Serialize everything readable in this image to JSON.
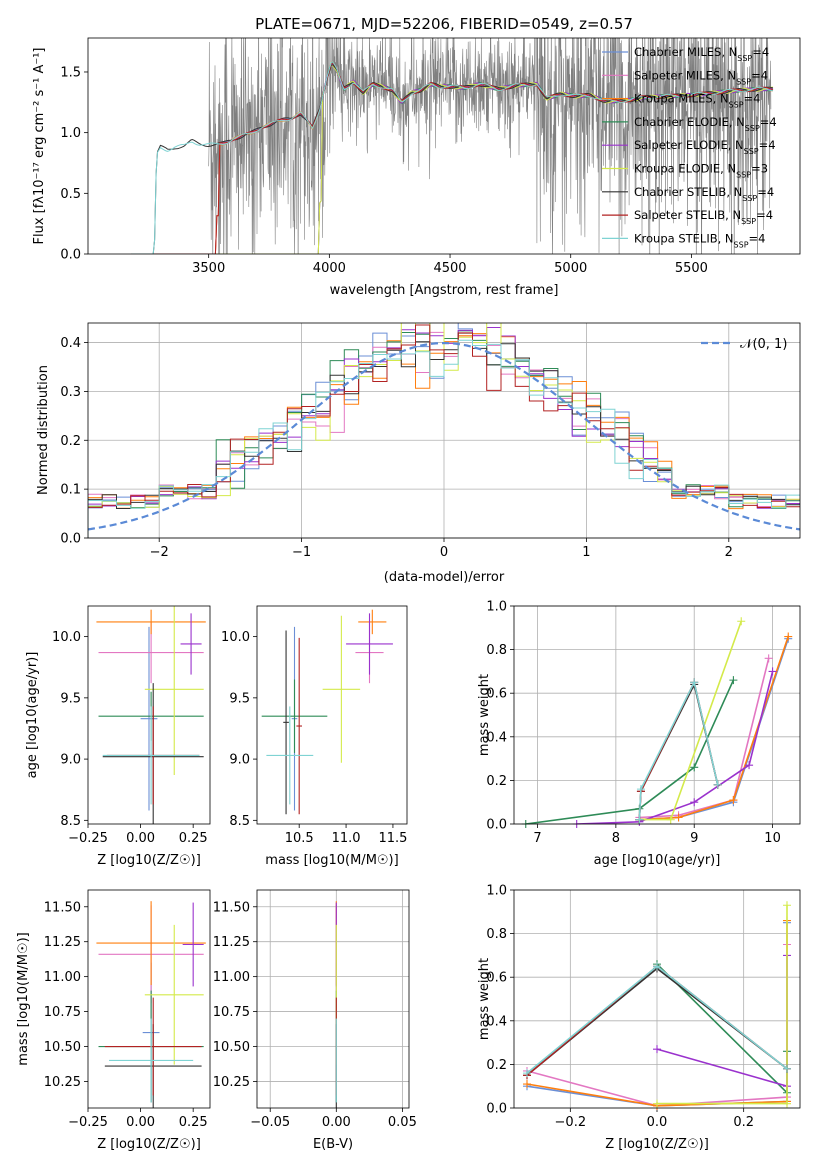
{
  "title": "PLATE=0671, MJD=52206, FIBERID=0549, z=0.57",
  "colors": {
    "Chabrier MILES": "#6b8fd6",
    "Salpeter MILES": "#e377c2",
    "Kroupa MILES": "#ff7f0e",
    "Chabrier ELODIE": "#2e8b57",
    "Salpeter ELODIE": "#9a32cd",
    "Kroupa ELODIE": "#d4ea4a",
    "Chabrier STELIB": "#333333",
    "Salpeter STELIB": "#b22222",
    "Kroupa STELIB": "#7fd3d3",
    "data": "#808080"
  },
  "chart_data": [
    {
      "type": "line",
      "title": "PLATE=0671, MJD=52206, FIBERID=0549, z=0.57",
      "xlabel": "wavelength [Angstrom, rest frame]",
      "ylabel": "Flux [f_λ 10⁻¹⁷ erg cm⁻² s⁻¹ A⁻¹]",
      "xlim": [
        3000,
        5950
      ],
      "ylim": [
        0,
        1.78
      ],
      "xticks": [
        "3500",
        "4000",
        "4500",
        "5000",
        "5500"
      ],
      "yticks": [
        "0.0",
        "0.5",
        "1.0",
        "1.5"
      ],
      "legend": [
        "Chabrier MILES, N_SSP=4",
        "Salpeter MILES, N_SSP=4",
        "Kroupa MILES, N_SSP=4",
        "Chabrier ELODIE, N_SSP=4",
        "Salpeter ELODIE, N_SSP=4",
        "Kroupa ELODIE, N_SSP=3",
        "Chabrier STELIB, N_SSP=4",
        "Salpeter STELIB, N_SSP=4",
        "Kroupa STELIB, N_SSP=4"
      ],
      "legend_loc": "upper right",
      "model_x": [
        3180,
        3270,
        3285,
        3300,
        3330,
        3360,
        3400,
        3430,
        3460,
        3500,
        3530,
        3560,
        3600,
        3640,
        3680,
        3720,
        3760,
        3800,
        3840,
        3880,
        3930,
        3960,
        3990,
        4010,
        4030,
        4060,
        4100,
        4140,
        4180,
        4220,
        4260,
        4300,
        4340,
        4380,
        4420,
        4460,
        4500,
        4560,
        4620,
        4700,
        4780,
        4860,
        4900,
        4960,
        5020,
        5080,
        5140,
        5180,
        5250,
        5300,
        5400,
        5500,
        5600,
        5700,
        5800
      ],
      "model_y": [
        0.0,
        0.0,
        0.82,
        0.88,
        0.86,
        0.88,
        0.89,
        0.93,
        0.91,
        0.9,
        0.9,
        0.91,
        0.95,
        0.97,
        1.0,
        1.05,
        1.07,
        1.1,
        1.12,
        1.16,
        1.04,
        1.2,
        1.45,
        1.58,
        1.52,
        1.36,
        1.42,
        1.33,
        1.4,
        1.38,
        1.35,
        1.25,
        1.33,
        1.35,
        1.4,
        1.38,
        1.38,
        1.37,
        1.4,
        1.36,
        1.39,
        1.4,
        1.28,
        1.32,
        1.3,
        1.31,
        1.26,
        1.26,
        1.27,
        1.29,
        1.3,
        1.31,
        1.33,
        1.35,
        1.36
      ],
      "model_start": {
        "Chabrier MILES": 3530,
        "Salpeter MILES": 3530,
        "Kroupa MILES": 3530,
        "Chabrier ELODIE": 3960,
        "Salpeter ELODIE": 3960,
        "Kroupa ELODIE": 3960,
        "Chabrier STELIB": 3270,
        "Salpeter STELIB": 3530,
        "Kroupa STELIB": 3270
      },
      "data_range": [
        3500,
        5830
      ]
    },
    {
      "type": "histogram",
      "xlabel": "(data-model)/error",
      "ylabel": "Normed distribution",
      "xlim": [
        -2.5,
        2.5
      ],
      "ylim": [
        0,
        0.44
      ],
      "xticks": [
        "−2",
        "−1",
        "0",
        "1",
        "2"
      ],
      "yticks": [
        "0.0",
        "0.1",
        "0.2",
        "0.3",
        "0.4"
      ],
      "legend": [
        "𝒩(0, 1)"
      ],
      "legend_loc": "upper right",
      "bin_width": 0.1
    },
    {
      "type": "scatter",
      "xlabel": "Z [log10(Z/Z☉)]",
      "ylabel": "age  [log10(age/yr)]",
      "xlim": [
        -0.25,
        0.33
      ],
      "ylim": [
        8.47,
        10.25
      ],
      "xticks": [
        "−0.25",
        "0.00",
        "0.25"
      ],
      "yticks": [
        "8.5",
        "9.0",
        "9.5",
        "10.0"
      ],
      "points": [
        {
          "series": "Chabrier MILES",
          "x": 0.04,
          "y": 9.33,
          "xe": 0.04,
          "ye": 0.75
        },
        {
          "series": "Salpeter MILES",
          "x": 0.05,
          "y": 9.87,
          "xe": 0.25,
          "ye": 0.25
        },
        {
          "series": "Kroupa MILES",
          "x": 0.05,
          "y": 10.12,
          "xe": 0.26,
          "ye": 0.1
        },
        {
          "series": "Chabrier ELODIE",
          "x": 0.05,
          "y": 9.35,
          "xe": 0.25,
          "ye": 0.2
        },
        {
          "series": "Salpeter ELODIE",
          "x": 0.24,
          "y": 9.94,
          "xe": 0.05,
          "ye": 0.25
        },
        {
          "series": "Kroupa ELODIE",
          "x": 0.16,
          "y": 9.57,
          "xe": 0.14,
          "ye": 0.7
        },
        {
          "series": "Chabrier STELIB",
          "x": 0.06,
          "y": 9.02,
          "xe": 0.24,
          "ye": 0.6
        },
        {
          "series": "Salpeter STELIB",
          "x": 0.06,
          "y": 9.03,
          "xe": 0.22,
          "ye": 0.4
        },
        {
          "series": "Kroupa STELIB",
          "x": 0.05,
          "y": 9.03,
          "xe": 0.23,
          "ye": 0.4
        }
      ]
    },
    {
      "type": "scatter",
      "xlabel": "mass [log10(M/M☉)]",
      "xlim": [
        10.05,
        11.65
      ],
      "ylim": [
        8.47,
        10.25
      ],
      "xticks": [
        "10.5",
        "11.0",
        "11.5"
      ],
      "yticks": [
        "8.5",
        "9.0",
        "9.5",
        "10.0"
      ],
      "points": [
        {
          "series": "Chabrier MILES",
          "x": 10.45,
          "y": 9.33,
          "xe": 0.03,
          "ye": 0.75
        },
        {
          "series": "Salpeter MILES",
          "x": 11.25,
          "y": 9.87,
          "xe": 0.15,
          "ye": 0.25
        },
        {
          "series": "Kroupa MILES",
          "x": 11.28,
          "y": 10.12,
          "xe": 0.15,
          "ye": 0.1
        },
        {
          "series": "Chabrier ELODIE",
          "x": 10.45,
          "y": 9.35,
          "xe": 0.35,
          "ye": 0.3
        },
        {
          "series": "Salpeter ELODIE",
          "x": 11.25,
          "y": 9.94,
          "xe": 0.25,
          "ye": 0.25
        },
        {
          "series": "Kroupa ELODIE",
          "x": 10.95,
          "y": 9.57,
          "xe": 0.2,
          "ye": 0.6
        },
        {
          "series": "Chabrier STELIB",
          "x": 10.36,
          "y": 9.3,
          "xe": 0.03,
          "ye": 0.75
        },
        {
          "series": "Salpeter STELIB",
          "x": 10.5,
          "y": 9.27,
          "xe": 0.03,
          "ye": 0.72
        },
        {
          "series": "Kroupa STELIB",
          "x": 10.4,
          "y": 9.03,
          "xe": 0.25,
          "ye": 0.4
        }
      ]
    },
    {
      "type": "line",
      "xlabel": "age  [log10(age/yr)]",
      "ylabel": "mass weight",
      "xlim": [
        6.7,
        10.35
      ],
      "ylim": [
        0,
        1.0
      ],
      "xticks": [
        "7",
        "8",
        "9",
        "10"
      ],
      "yticks": [
        "0.0",
        "0.2",
        "0.4",
        "0.6",
        "0.8",
        "1.0"
      ],
      "series": [
        {
          "name": "Chabrier MILES",
          "x": [
            8.3,
            8.8,
            9.5,
            10.2
          ],
          "y": [
            0.02,
            0.03,
            0.1,
            0.85
          ]
        },
        {
          "name": "Salpeter MILES",
          "x": [
            8.3,
            8.8,
            9.5,
            9.95
          ],
          "y": [
            0.03,
            0.04,
            0.11,
            0.76
          ]
        },
        {
          "name": "Kroupa MILES",
          "x": [
            8.3,
            8.8,
            9.5,
            10.2
          ],
          "y": [
            0.02,
            0.03,
            0.11,
            0.86
          ]
        },
        {
          "name": "Chabrier ELODIE",
          "x": [
            6.85,
            8.3,
            9.0,
            9.5
          ],
          "y": [
            0.0,
            0.07,
            0.26,
            0.66
          ]
        },
        {
          "name": "Salpeter ELODIE",
          "x": [
            7.5,
            8.3,
            9.0,
            9.7,
            10.0
          ],
          "y": [
            0.0,
            0.01,
            0.1,
            0.27,
            0.7
          ]
        },
        {
          "name": "Kroupa ELODIE",
          "x": [
            8.3,
            8.7,
            9.6
          ],
          "y": [
            0.02,
            0.02,
            0.93
          ]
        },
        {
          "name": "Chabrier STELIB",
          "x": [
            8.3,
            8.32,
            9.0,
            9.3
          ],
          "y": [
            0.02,
            0.15,
            0.64,
            0.18
          ]
        },
        {
          "name": "Salpeter STELIB",
          "x": [
            8.3,
            8.32,
            9.0,
            9.3
          ],
          "y": [
            0.02,
            0.15,
            0.65,
            0.18
          ]
        },
        {
          "name": "Kroupa STELIB",
          "x": [
            8.3,
            8.32,
            9.0,
            9.3
          ],
          "y": [
            0.02,
            0.16,
            0.65,
            0.18
          ]
        }
      ]
    },
    {
      "type": "scatter",
      "xlabel": "Z [log10(Z/Z☉)]",
      "ylabel": "mass [log10(M/M☉)]",
      "xlim": [
        -0.25,
        0.33
      ],
      "ylim": [
        10.06,
        11.62
      ],
      "xticks": [
        "−0.25",
        "0.00",
        "0.25"
      ],
      "yticks": [
        "10.25",
        "10.50",
        "10.75",
        "11.00",
        "11.25",
        "11.50"
      ],
      "points": [
        {
          "series": "Chabrier MILES",
          "x": 0.05,
          "y": 10.6,
          "xe": 0.04,
          "ye": 0.5
        },
        {
          "series": "Salpeter MILES",
          "x": 0.05,
          "y": 11.16,
          "xe": 0.25,
          "ye": 0.35
        },
        {
          "series": "Kroupa MILES",
          "x": 0.05,
          "y": 11.24,
          "xe": 0.26,
          "ye": 0.3
        },
        {
          "series": "Chabrier ELODIE",
          "x": 0.05,
          "y": 10.5,
          "xe": 0.25,
          "ye": 0.4
        },
        {
          "series": "Salpeter ELODIE",
          "x": 0.25,
          "y": 11.23,
          "xe": 0.05,
          "ye": 0.3
        },
        {
          "series": "Kroupa ELODIE",
          "x": 0.16,
          "y": 10.87,
          "xe": 0.14,
          "ye": 0.5
        },
        {
          "series": "Chabrier STELIB",
          "x": 0.06,
          "y": 10.36,
          "xe": 0.23,
          "ye": 0.3
        },
        {
          "series": "Salpeter STELIB",
          "x": 0.06,
          "y": 10.5,
          "xe": 0.23,
          "ye": 0.35
        },
        {
          "series": "Kroupa STELIB",
          "x": 0.05,
          "y": 10.4,
          "xe": 0.2,
          "ye": 0.3
        }
      ]
    },
    {
      "type": "scatter",
      "xlabel": "E(B-V)",
      "xlim": [
        -0.06,
        0.055
      ],
      "ylim": [
        10.06,
        11.62
      ],
      "xticks": [
        "−0.05",
        "0.00",
        "0.05"
      ],
      "yticks": [
        "10.25",
        "10.50",
        "10.75",
        "11.00",
        "11.25",
        "11.50"
      ],
      "points": [
        {
          "series": "Chabrier MILES",
          "x": 0.0,
          "y": 10.6,
          "xe": 0,
          "ye": 0.5
        },
        {
          "series": "Salpeter MILES",
          "x": 0.0,
          "y": 11.16,
          "xe": 0,
          "ye": 0.35
        },
        {
          "series": "Kroupa MILES",
          "x": 0.0,
          "y": 11.24,
          "xe": 0,
          "ye": 0.3
        },
        {
          "series": "Chabrier ELODIE",
          "x": 0.0,
          "y": 10.5,
          "xe": 0,
          "ye": 0.4
        },
        {
          "series": "Salpeter ELODIE",
          "x": 0.0,
          "y": 11.23,
          "xe": 0,
          "ye": 0.3
        },
        {
          "series": "Kroupa ELODIE",
          "x": 0.0,
          "y": 10.87,
          "xe": 0,
          "ye": 0.5
        },
        {
          "series": "Chabrier STELIB",
          "x": 0.0,
          "y": 10.36,
          "xe": 0,
          "ye": 0.3
        },
        {
          "series": "Salpeter STELIB",
          "x": 0.0,
          "y": 10.5,
          "xe": 0,
          "ye": 0.35
        },
        {
          "series": "Kroupa STELIB",
          "x": 0.0,
          "y": 10.4,
          "xe": 0,
          "ye": 0.3
        }
      ]
    },
    {
      "type": "line",
      "xlabel": "Z [log10(Z/Z☉)]",
      "ylabel": "mass weight",
      "xlim": [
        -0.33,
        0.33
      ],
      "ylim": [
        0,
        1.0
      ],
      "xticks": [
        "−0.2",
        "0.0",
        "0.2"
      ],
      "yticks": [
        "0.0",
        "0.2",
        "0.4",
        "0.6",
        "0.8",
        "1.0"
      ],
      "series": [
        {
          "name": "Chabrier MILES",
          "x": [
            -0.3,
            0.0,
            0.3,
            0.3
          ],
          "y": [
            0.1,
            0.01,
            0.03,
            0.85
          ]
        },
        {
          "name": "Salpeter MILES",
          "x": [
            -0.3,
            0.0,
            0.3,
            0.3
          ],
          "y": [
            0.17,
            0.01,
            0.05,
            0.75
          ]
        },
        {
          "name": "Kroupa MILES",
          "x": [
            -0.3,
            0.0,
            0.3,
            0.3
          ],
          "y": [
            0.11,
            0.01,
            0.03,
            0.86
          ]
        },
        {
          "name": "Chabrier ELODIE",
          "x": [
            0.0,
            0.3,
            0.3
          ],
          "y": [
            0.66,
            0.07,
            0.26
          ]
        },
        {
          "name": "Salpeter ELODIE",
          "x": [
            0.0,
            0.3,
            0.3
          ],
          "y": [
            0.27,
            0.1,
            0.7
          ]
        },
        {
          "name": "Kroupa ELODIE",
          "x": [
            0.0,
            0.3,
            0.3
          ],
          "y": [
            0.02,
            0.02,
            0.93
          ]
        },
        {
          "name": "Chabrier STELIB",
          "x": [
            -0.3,
            0.0,
            0.3
          ],
          "y": [
            0.15,
            0.64,
            0.18
          ]
        },
        {
          "name": "Salpeter STELIB",
          "x": [
            -0.3,
            0.0,
            0.3
          ],
          "y": [
            0.15,
            0.65,
            0.18
          ]
        },
        {
          "name": "Kroupa STELIB",
          "x": [
            -0.3,
            0.0,
            0.3
          ],
          "y": [
            0.16,
            0.65,
            0.18
          ]
        }
      ]
    }
  ]
}
